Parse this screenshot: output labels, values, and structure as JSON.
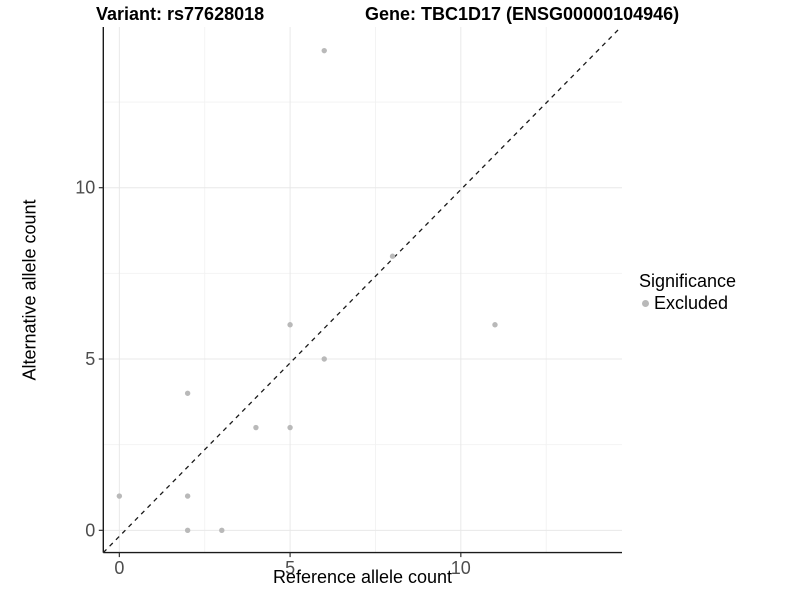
{
  "chart_data": {
    "type": "scatter",
    "title_left": "Variant: rs77628018",
    "title_right": "Gene: TBC1D17 (ENSG00000104946)",
    "xlabel": "Reference allele count",
    "ylabel": "Alternative allele count",
    "x_ticks": [
      0,
      5,
      10
    ],
    "y_ticks": [
      0,
      5,
      10
    ],
    "x_minor_ticks": [
      2.5,
      7.5,
      12.5
    ],
    "y_minor_ticks": [
      2.5,
      7.5,
      12.5
    ],
    "xlim": [
      -0.47,
      14.72
    ],
    "ylim": [
      -0.65,
      14.69
    ],
    "grid": true,
    "identity_line": {
      "style": "dashed",
      "equation": "y = x",
      "color": "#1a1a1a"
    },
    "series": [
      {
        "name": "Excluded",
        "color": "#b9b9b9",
        "points": [
          [
            0,
            1
          ],
          [
            2,
            0
          ],
          [
            2,
            1
          ],
          [
            2,
            4
          ],
          [
            3,
            0
          ],
          [
            4,
            3
          ],
          [
            5,
            3
          ],
          [
            5,
            6
          ],
          [
            6,
            5
          ],
          [
            6,
            14
          ],
          [
            8,
            8
          ],
          [
            11,
            6
          ]
        ]
      }
    ],
    "legend": {
      "title": "Significance",
      "position": "right",
      "entries": [
        {
          "label": "Excluded",
          "color": "#b9b9b9"
        }
      ]
    },
    "colors": {
      "major_grid": "#e8e8e8",
      "minor_grid": "#f2f2f2",
      "axis_line": "#1a1a1a",
      "tick_label": "#4d4d4d",
      "point": "#b9b9b9"
    }
  }
}
